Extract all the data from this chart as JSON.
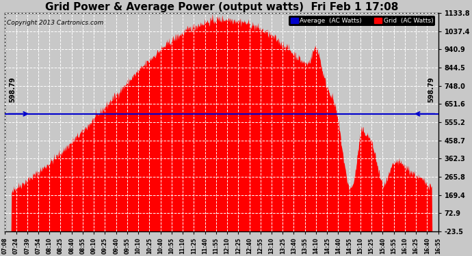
{
  "title": "Grid Power & Average Power (output watts)  Fri Feb 1 17:08",
  "copyright": "Copyright 2013 Cartronics.com",
  "average_value": 598.79,
  "avg_label": "598.79",
  "y_min": -23.5,
  "y_max": 1133.8,
  "yticks": [
    1133.8,
    1037.4,
    940.9,
    844.5,
    748.0,
    651.6,
    555.2,
    458.7,
    362.3,
    265.8,
    169.4,
    72.9,
    -23.5
  ],
  "background_color": "#c8c8c8",
  "plot_bg_color": "#c8c8c8",
  "fill_color": "#ff0000",
  "avg_line_color": "#0000cc",
  "grid_color": "#ffffff",
  "title_fontsize": 11,
  "legend_avg_color": "#0000cc",
  "legend_grid_color": "#ff0000",
  "x_tick_labels": [
    "07:08",
    "07:24",
    "07:39",
    "07:54",
    "08:10",
    "08:25",
    "08:40",
    "08:55",
    "09:10",
    "09:25",
    "09:40",
    "09:55",
    "10:10",
    "10:25",
    "10:40",
    "10:55",
    "11:10",
    "11:25",
    "11:40",
    "11:55",
    "12:10",
    "12:25",
    "12:40",
    "12:55",
    "13:10",
    "13:25",
    "13:40",
    "13:55",
    "14:10",
    "14:25",
    "14:40",
    "14:55",
    "15:10",
    "15:25",
    "15:40",
    "15:55",
    "16:10",
    "16:25",
    "16:40",
    "16:55"
  ],
  "noon_minutes": 726,
  "sigma_minutes": 155,
  "peak_power": 1100,
  "spike1_time": 850,
  "spike1_amp": 150,
  "spike1_sigma": 6,
  "dip1_time": 895,
  "dip1_amp": -400,
  "dip1_sigma": 10,
  "spike2_time": 910,
  "spike2_amp": 80,
  "spike2_sigma": 4,
  "dip2_time": 940,
  "dip2_amp": -200,
  "dip2_sigma": 8
}
